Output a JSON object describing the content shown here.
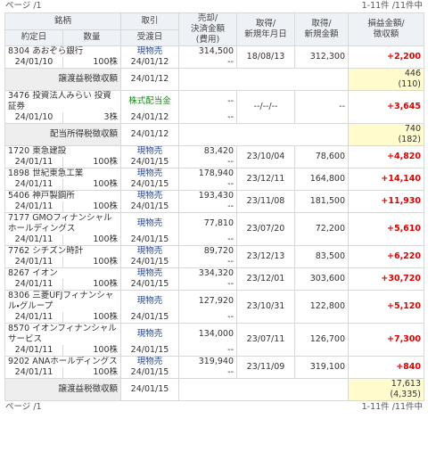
{
  "header": {
    "page": "ページ /1",
    "count": "1-11件 /11件中"
  },
  "columns": {
    "issue": "銘柄",
    "trade_date": "約定日",
    "qty": "数量",
    "type": "取引",
    "settle_date": "受渡日",
    "amount": [
      "売却/",
      "決済金額",
      "(費用)"
    ],
    "acq_date": [
      "取得/",
      "新規年月日"
    ],
    "acq_amount": [
      "取得/",
      "新規金額"
    ],
    "pnl": [
      "損益金額/",
      "徴収額"
    ]
  },
  "rows": [
    {
      "name": "8304 あおぞら銀行",
      "type": "現物売",
      "type_color": "#1a3f8f",
      "amount": "314,500",
      "fee": "--",
      "acq_date": "18/08/13",
      "acq_amount": "312,300",
      "pnl": "+2,200",
      "trade_date": "24/01/10",
      "qty": "100株",
      "settle_date": "24/01/12"
    },
    {
      "label": "譲渡益税徴収額",
      "settle_date": "24/01/12",
      "amount": "446",
      "tax": "(110)"
    },
    {
      "name": "3476 投資法人みらい 投資証券",
      "type": "株式配当金",
      "type_color": "#1a8a1a",
      "amount": "--",
      "fee": "--",
      "acq_date": "--/--/--",
      "acq_amount": "--",
      "pnl": "+3,645",
      "trade_date": "24/01/10",
      "qty": "3株",
      "settle_date": "24/01/12"
    },
    {
      "label": "配当所得税徴収額",
      "settle_date": "24/01/12",
      "amount": "740",
      "tax": "(182)"
    },
    {
      "name": "1720 東急建設",
      "type": "現物売",
      "type_color": "#1a3f8f",
      "amount": "83,420",
      "fee": "--",
      "acq_date": "23/10/04",
      "acq_amount": "78,600",
      "pnl": "+4,820",
      "trade_date": "24/01/11",
      "qty": "100株",
      "settle_date": "24/01/15"
    },
    {
      "name": "1898 世紀東急工業",
      "type": "現物売",
      "type_color": "#1a3f8f",
      "amount": "178,940",
      "fee": "--",
      "acq_date": "23/12/11",
      "acq_amount": "164,800",
      "pnl": "+14,140",
      "trade_date": "24/01/11",
      "qty": "100株",
      "settle_date": "24/01/15"
    },
    {
      "name": "5406 神戸製鋼所",
      "type": "現物売",
      "type_color": "#1a3f8f",
      "amount": "193,430",
      "fee": "--",
      "acq_date": "23/11/08",
      "acq_amount": "181,500",
      "pnl": "+11,930",
      "trade_date": "24/01/11",
      "qty": "100株",
      "settle_date": "24/01/15"
    },
    {
      "name": "7177 GMOフィナンシャルホールディングス",
      "type": "現物売",
      "type_color": "#1a3f8f",
      "amount": "77,810",
      "fee": "--",
      "acq_date": "23/07/20",
      "acq_amount": "72,200",
      "pnl": "+5,610",
      "trade_date": "24/01/11",
      "qty": "100株",
      "settle_date": "24/01/15"
    },
    {
      "name": "7762 シチズン時計",
      "type": "現物売",
      "type_color": "#1a3f8f",
      "amount": "89,720",
      "fee": "--",
      "acq_date": "23/12/13",
      "acq_amount": "83,500",
      "pnl": "+6,220",
      "trade_date": "24/01/11",
      "qty": "100株",
      "settle_date": "24/01/15"
    },
    {
      "name": "8267 イオン",
      "type": "現物売",
      "type_color": "#1a3f8f",
      "amount": "334,320",
      "fee": "--",
      "acq_date": "23/12/01",
      "acq_amount": "303,600",
      "pnl": "+30,720",
      "trade_date": "24/01/11",
      "qty": "100株",
      "settle_date": "24/01/15"
    },
    {
      "name": "8306 三菱UFJフィナンシャル・グループ",
      "type": "現物売",
      "type_color": "#1a3f8f",
      "amount": "127,920",
      "fee": "--",
      "acq_date": "23/10/31",
      "acq_amount": "122,800",
      "pnl": "+5,120",
      "trade_date": "24/01/11",
      "qty": "100株",
      "settle_date": "24/01/15"
    },
    {
      "name": "8570 イオンフィナンシャルサービス",
      "type": "現物売",
      "type_color": "#1a3f8f",
      "amount": "134,000",
      "fee": "--",
      "acq_date": "23/07/11",
      "acq_amount": "126,700",
      "pnl": "+7,300",
      "trade_date": "24/01/11",
      "qty": "100株",
      "settle_date": "24/01/15"
    },
    {
      "name": "9202 ANAホールディングス",
      "type": "現物売",
      "type_color": "#1a3f8f",
      "amount": "319,940",
      "fee": "--",
      "acq_date": "23/11/09",
      "acq_amount": "319,100",
      "pnl": "+840",
      "trade_date": "24/01/11",
      "qty": "100株",
      "settle_date": "24/01/15"
    },
    {
      "label": "譲渡益税徴収額",
      "settle_date": "24/01/15",
      "amount": "17,613",
      "tax": "(4,335)"
    }
  ],
  "footer": {
    "page": "ページ /1",
    "count": "1-11件 /11件中"
  }
}
